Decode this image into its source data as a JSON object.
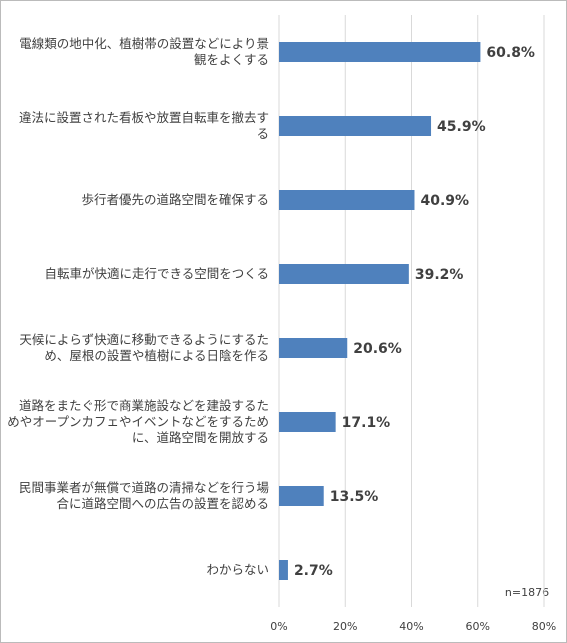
{
  "chart_data": {
    "type": "bar",
    "orientation": "horizontal",
    "categories": [
      "電線類の地中化、植樹帯の設置などにより景観をよくする",
      "違法に設置された看板や放置自転車を撤去する",
      "歩行者優先の道路空間を確保する",
      "自転車が快適に走行できる空間をつくる",
      "天候によらず快適に移動できるようにするため、屋根の設置や植樹による日陰を作る",
      "道路をまたぐ形で商業施設などを建設するためやオープンカフェやイベントなどをするために、道路空間を開放する",
      "民間事業者が無償で道路の清掃などを行う場合に道路空間への広告の設置を認める",
      "わからない"
    ],
    "values": [
      60.8,
      45.9,
      40.9,
      39.2,
      20.6,
      17.1,
      13.5,
      2.7
    ],
    "value_labels": [
      "60.8%",
      "45.9%",
      "40.9%",
      "39.2%",
      "20.6%",
      "17.1%",
      "13.5%",
      "2.7%"
    ],
    "color": "#4f81bd",
    "xlim": [
      0,
      80
    ],
    "xticks": [
      {
        "value": 0,
        "label": "0%"
      },
      {
        "value": 20,
        "label": "20%"
      },
      {
        "value": 40,
        "label": "40%"
      },
      {
        "value": 60,
        "label": "60%"
      },
      {
        "value": 80,
        "label": "80%"
      }
    ],
    "grid": true,
    "annotation": "n=1876"
  }
}
